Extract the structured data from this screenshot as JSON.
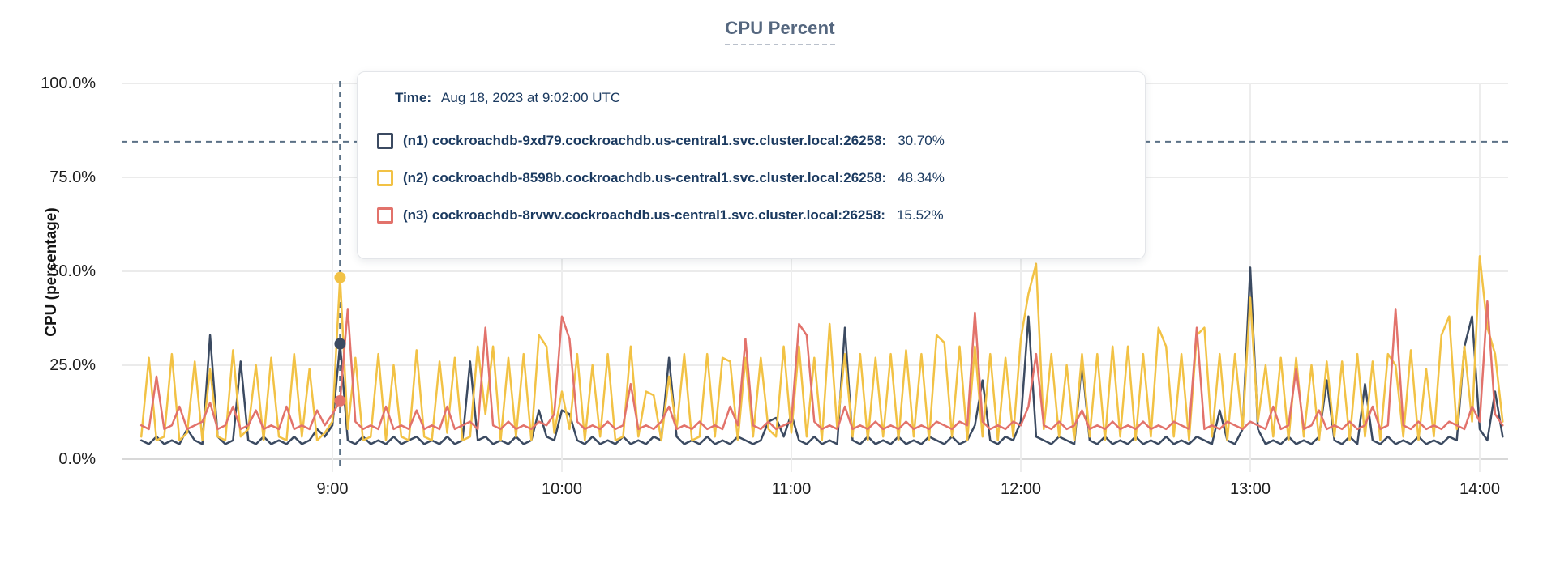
{
  "chart_data": {
    "type": "line",
    "title": "CPU Percent",
    "ylabel": "CPU (percentage)",
    "ylim": [
      0,
      100
    ],
    "grid": true,
    "y_ticks": [
      "0.0%",
      "25.0%",
      "50.0%",
      "75.0%",
      "100.0%"
    ],
    "y_tick_values": [
      0,
      25,
      50,
      75,
      100
    ],
    "x_ticks": [
      "9:00",
      "10:00",
      "11:00",
      "12:00",
      "13:00",
      "14:00"
    ],
    "x_tick_minutes": [
      540,
      600,
      660,
      720,
      780,
      840
    ],
    "x_start_minutes": 490,
    "x_step_minutes": 2,
    "crosshair": {
      "time_label": "9:02",
      "minutes": 542,
      "value_percent": 84.5,
      "hover_values": [
        30.7,
        48.34,
        15.52
      ]
    },
    "series": [
      {
        "name": "(n1) cockroachdb-9xd79.cockroachdb.us-central1.svc.cluster.local:26258",
        "color": "#3b4a61",
        "values": [
          5,
          4,
          6,
          4,
          5,
          4,
          8,
          5,
          4,
          33,
          6,
          4,
          5,
          26,
          5,
          4,
          6,
          4,
          5,
          4,
          6,
          4,
          5,
          8,
          6,
          9,
          30.7,
          5,
          4,
          6,
          4,
          5,
          4,
          6,
          4,
          5,
          6,
          4,
          5,
          4,
          6,
          4,
          5,
          26,
          5,
          6,
          4,
          5,
          4,
          6,
          4,
          5,
          13,
          6,
          5,
          13,
          12,
          5,
          4,
          6,
          4,
          5,
          4,
          6,
          4,
          5,
          4,
          6,
          5,
          27,
          6,
          4,
          5,
          4,
          6,
          4,
          5,
          4,
          6,
          5,
          4,
          5,
          10,
          11,
          6,
          12,
          5,
          4,
          6,
          4,
          5,
          4,
          35,
          5,
          4,
          6,
          4,
          5,
          4,
          6,
          4,
          5,
          4,
          6,
          5,
          4,
          6,
          4,
          5,
          9,
          21,
          5,
          4,
          6,
          5,
          10,
          38,
          6,
          5,
          4,
          6,
          5,
          4,
          26,
          5,
          4,
          6,
          4,
          5,
          4,
          6,
          4,
          5,
          4,
          6,
          4,
          5,
          4,
          6,
          5,
          4,
          13,
          5,
          4,
          8,
          51,
          8,
          4,
          5,
          4,
          6,
          4,
          5,
          4,
          6,
          21,
          5,
          4,
          6,
          4,
          20,
          5,
          4,
          6,
          4,
          5,
          4,
          6,
          4,
          5,
          4,
          6,
          5,
          30,
          38,
          8,
          5,
          18,
          6
        ]
      },
      {
        "name": "(n2) cockroachdb-8598b.cockroachdb.us-central1.svc.cluster.local:26258",
        "color": "#f2c245",
        "values": [
          6,
          27,
          5,
          6,
          28,
          5,
          7,
          26,
          5,
          24,
          6,
          5,
          29,
          6,
          8,
          25,
          5,
          27,
          6,
          5,
          28,
          6,
          24,
          5,
          7,
          10,
          48.34,
          8,
          27,
          5,
          6,
          28,
          5,
          25,
          6,
          5,
          29,
          6,
          5,
          26,
          7,
          27,
          5,
          6,
          30,
          12,
          30,
          5,
          27,
          6,
          28,
          5,
          33,
          30,
          7,
          18,
          8,
          28,
          5,
          25,
          6,
          28,
          5,
          6,
          30,
          6,
          18,
          17,
          5,
          22,
          8,
          28,
          5,
          6,
          28,
          6,
          27,
          26,
          5,
          27,
          6,
          27,
          8,
          6,
          30,
          7,
          30,
          6,
          27,
          5,
          36,
          8,
          28,
          6,
          28,
          5,
          27,
          6,
          28,
          5,
          29,
          6,
          28,
          5,
          33,
          31,
          6,
          30,
          5,
          30,
          6,
          28,
          5,
          27,
          6,
          32,
          44,
          52,
          8,
          28,
          6,
          25,
          5,
          28,
          6,
          28,
          5,
          30,
          6,
          30,
          5,
          28,
          6,
          35,
          30,
          6,
          28,
          5,
          33,
          35,
          6,
          28,
          5,
          28,
          8,
          43,
          10,
          25,
          6,
          27,
          5,
          27,
          6,
          25,
          5,
          26,
          6,
          26,
          5,
          28,
          6,
          26,
          5,
          28,
          25,
          6,
          29,
          5,
          24,
          6,
          33,
          38,
          8,
          30,
          10,
          54,
          35,
          28,
          10
        ]
      },
      {
        "name": "(n3) cockroachdb-8rvwv.cockroachdb.us-central1.svc.cluster.local:26258",
        "color": "#e2726b",
        "values": [
          9,
          8,
          22,
          8,
          9,
          14,
          8,
          9,
          10,
          15,
          8,
          9,
          14,
          8,
          9,
          13,
          8,
          9,
          8,
          14,
          8,
          9,
          8,
          13,
          9,
          12,
          15.52,
          40,
          10,
          8,
          9,
          8,
          14,
          8,
          9,
          8,
          13,
          8,
          9,
          8,
          14,
          8,
          9,
          10,
          8,
          35,
          9,
          8,
          10,
          8,
          9,
          8,
          10,
          9,
          12,
          38,
          32,
          10,
          8,
          9,
          8,
          10,
          8,
          9,
          20,
          8,
          9,
          8,
          10,
          14,
          8,
          9,
          8,
          10,
          8,
          9,
          8,
          14,
          9,
          32,
          9,
          8,
          10,
          8,
          9,
          10,
          36,
          33,
          10,
          8,
          9,
          8,
          14,
          8,
          9,
          8,
          10,
          8,
          9,
          8,
          10,
          8,
          9,
          8,
          10,
          9,
          8,
          10,
          9,
          39,
          10,
          8,
          9,
          8,
          10,
          9,
          14,
          28,
          9,
          8,
          10,
          8,
          9,
          13,
          8,
          9,
          8,
          10,
          8,
          9,
          8,
          10,
          8,
          9,
          8,
          10,
          9,
          8,
          35,
          8,
          9,
          8,
          10,
          9,
          8,
          10,
          9,
          8,
          14,
          8,
          9,
          24,
          8,
          9,
          13,
          8,
          9,
          8,
          10,
          8,
          9,
          14,
          8,
          9,
          40,
          9,
          8,
          10,
          8,
          9,
          8,
          10,
          9,
          8,
          14,
          10,
          42,
          12,
          9
        ]
      }
    ]
  },
  "tooltip": {
    "time_label": "Time:",
    "time_value": "Aug 18, 2023 at 9:02:00 UTC",
    "rows": [
      {
        "label": "(n1) cockroachdb-9xd79.cockroachdb.us-central1.svc.cluster.local:26258:",
        "value": "30.70%",
        "color": "#3b4a61"
      },
      {
        "label": "(n2) cockroachdb-8598b.cockroachdb.us-central1.svc.cluster.local:26258:",
        "value": "48.34%",
        "color": "#f2c245"
      },
      {
        "label": "(n3) cockroachdb-8rvwv.cockroachdb.us-central1.svc.cluster.local:26258:",
        "value": "15.52%",
        "color": "#e2726b"
      }
    ]
  },
  "colors": {
    "title": "#55677f",
    "crosshair": "#5b7186",
    "gridline": "#ebebeb",
    "axis_line": "#d8d8d8",
    "tooltip_text": "#1b3a60"
  }
}
